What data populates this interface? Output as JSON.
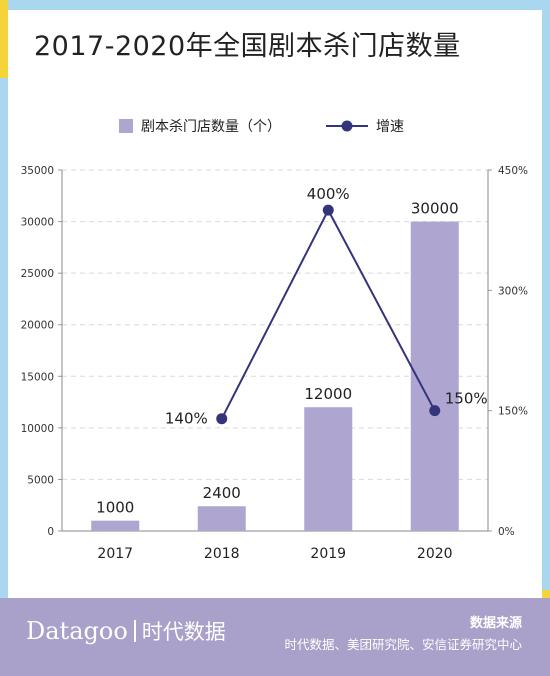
{
  "title": "2017-2020年全国剧本杀门店数量",
  "colors": {
    "bar": "#aea6d0",
    "line": "#34347a",
    "footer": "#a9a1c9",
    "accent_yellow": "#f5d33a",
    "accent_blue": "#a9d7ef"
  },
  "chart_data": {
    "type": "bar",
    "categories": [
      "2017",
      "2018",
      "2019",
      "2020"
    ],
    "series": [
      {
        "name": "剧本杀门店数量（个）",
        "type": "bar",
        "axis": "left",
        "values": [
          1000,
          2400,
          12000,
          30000
        ],
        "labels": [
          "1000",
          "2400",
          "12000",
          "30000"
        ]
      },
      {
        "name": "增速",
        "type": "line",
        "axis": "right",
        "values": [
          null,
          140,
          400,
          150
        ],
        "labels": [
          "",
          "140%",
          "400%",
          "150%"
        ]
      }
    ],
    "y_left": {
      "min": 0,
      "max": 35000,
      "ticks": [
        "0",
        "5000",
        "10000",
        "15000",
        "20000",
        "25000",
        "30000",
        "35000"
      ]
    },
    "y_right": {
      "min": 0,
      "max": 450,
      "ticks": [
        "0%",
        "150%",
        "300%",
        "450%"
      ]
    },
    "grid": "dashed horizontal",
    "legend": "top-center"
  },
  "footer": {
    "brand": "Datagoo",
    "brand_cn": "时代数据",
    "source_title": "数据来源",
    "source_text": "时代数据、美团研究院、安信证券研究中心"
  }
}
